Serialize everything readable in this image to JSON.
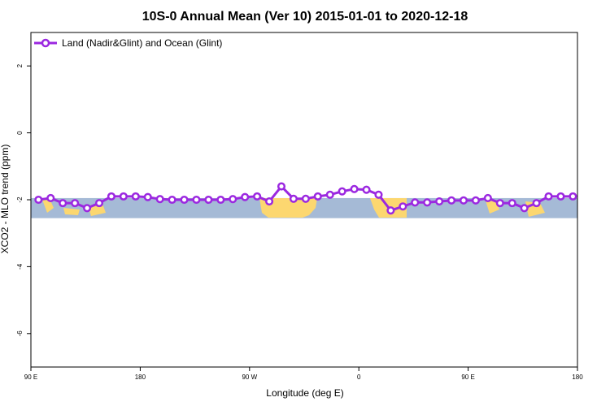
{
  "chart_data": {
    "type": "line",
    "title": "10S-0 Annual Mean (Ver 10)   2015-01-01 to 2020-12-18",
    "xlabel": "Longitude (deg E)",
    "ylabel": "XCO2 - MLO trend (ppm)",
    "xlim": [
      90,
      450
    ],
    "ylim": [
      -7,
      3
    ],
    "x_ticks": [
      {
        "value": 90,
        "label": "90 E"
      },
      {
        "value": 162,
        "label": "180"
      },
      {
        "value": 234,
        "label": "90 W"
      },
      {
        "value": 306,
        "label": "0"
      },
      {
        "value": 378,
        "label": "90 E"
      },
      {
        "value": 450,
        "label": "180"
      }
    ],
    "y_ticks": [
      2,
      0,
      -2,
      -4,
      -6
    ],
    "grid": false,
    "legend": {
      "position": "top-left",
      "entries": [
        "Land (Nadir&Glint) and Ocean (Glint)"
      ]
    },
    "map_strip": {
      "y_range": [
        -2.55,
        -1.95
      ],
      "ocean_color": "#a5bad6",
      "land_color": "#fcd770"
    },
    "series": [
      {
        "name": "Land (Nadir&Glint) and Ocean (Glint)",
        "color": "#9b28e0",
        "x": [
          95,
          103,
          111,
          119,
          127,
          135,
          143,
          151,
          159,
          167,
          175,
          183,
          191,
          199,
          207,
          215,
          223,
          231,
          239,
          247,
          255,
          263,
          271,
          279,
          287,
          295,
          303,
          311,
          319,
          327,
          335,
          343,
          351,
          359,
          367,
          375,
          383,
          391,
          399,
          407,
          415,
          423,
          431,
          439,
          447
        ],
        "y": [
          -2.0,
          -1.95,
          -2.1,
          -2.1,
          -2.25,
          -2.1,
          -1.9,
          -1.9,
          -1.9,
          -1.92,
          -1.98,
          -2.0,
          -2.0,
          -2.0,
          -2.0,
          -2.0,
          -1.98,
          -1.92,
          -1.9,
          -2.05,
          -1.6,
          -1.97,
          -1.97,
          -1.9,
          -1.85,
          -1.75,
          -1.68,
          -1.7,
          -1.85,
          -2.32,
          -2.2,
          -2.08,
          -2.08,
          -2.05,
          -2.02,
          -2.02,
          -2.02,
          -1.95,
          -2.1,
          -2.1,
          -2.25,
          -2.1,
          -1.9,
          -1.9,
          -1.9
        ]
      }
    ]
  }
}
